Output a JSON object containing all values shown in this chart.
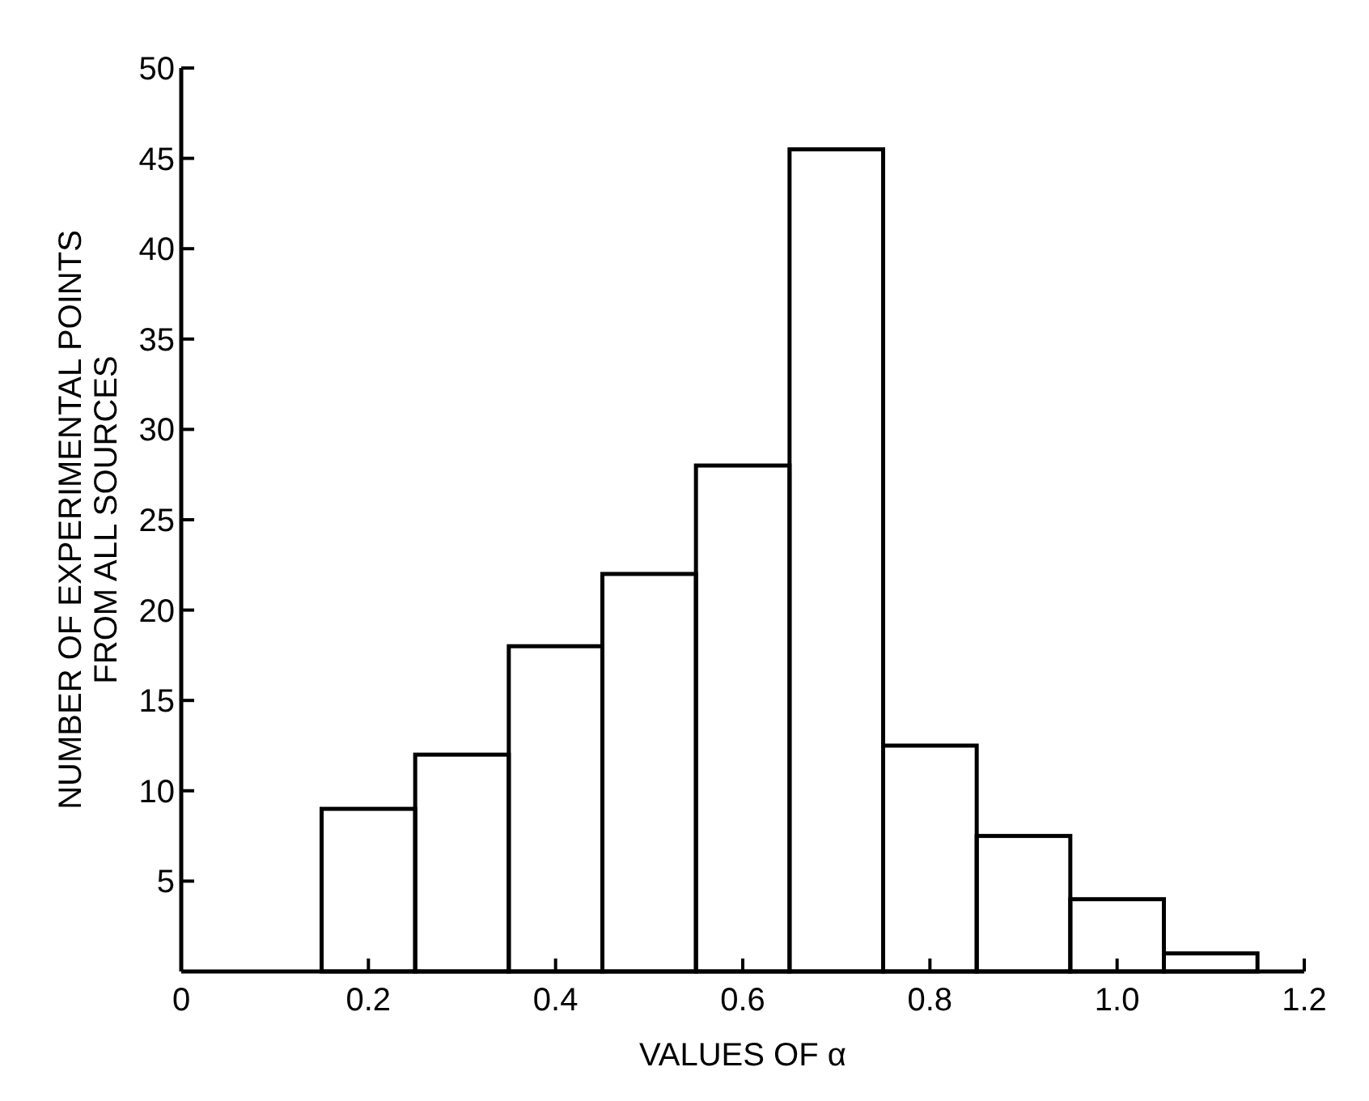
{
  "chart_data": {
    "type": "histogram",
    "bins": [
      0.15,
      0.25,
      0.35,
      0.45,
      0.55,
      0.65,
      0.75,
      0.85,
      0.95,
      1.05,
      1.15
    ],
    "values": [
      9,
      12,
      18,
      22,
      28,
      45.5,
      12.5,
      7.5,
      4,
      1
    ],
    "color": "#000000",
    "xlim": [
      0,
      1.2
    ],
    "xticks": [
      0,
      0.2,
      0.4,
      0.6,
      0.8,
      {
        "value": 1.0,
        "label": "1.0"
      },
      1.2
    ],
    "ylim": [
      0,
      50
    ],
    "yticks": [
      5,
      10,
      15,
      20,
      25,
      30,
      35,
      40,
      45,
      50
    ],
    "xlabel": "VALUES OF α",
    "ylabel": "NUMBER OF EXPERIMENTAL POINTS\nFROM ALL SOURCES",
    "grid": false
  }
}
